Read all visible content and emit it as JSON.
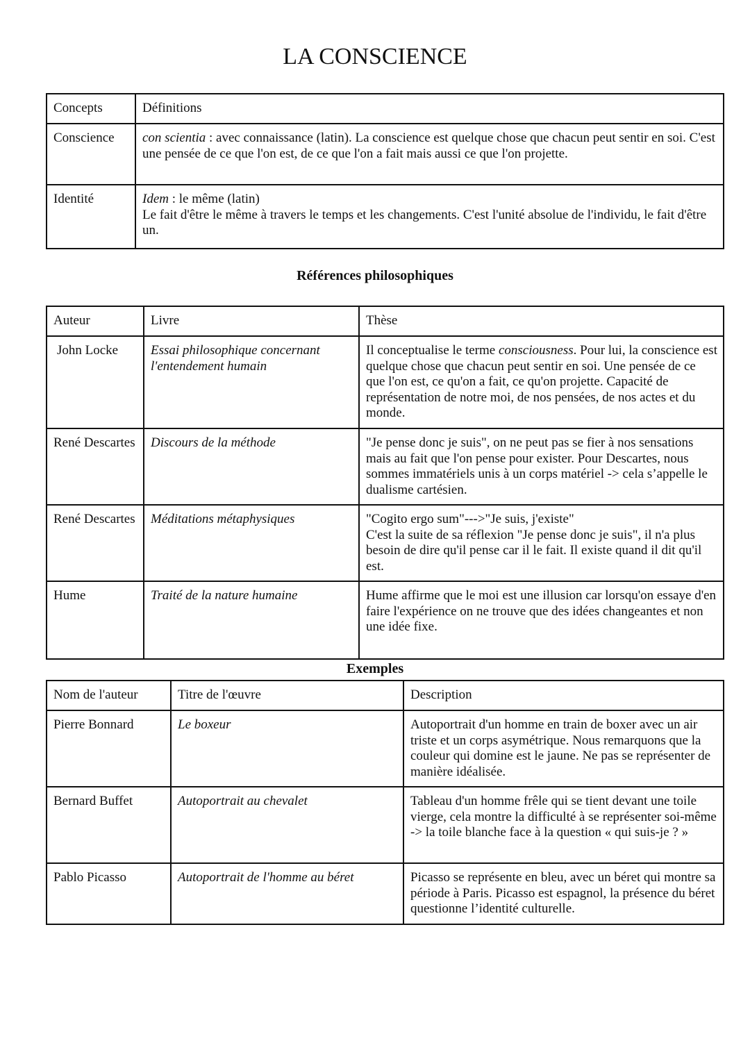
{
  "title": "LA CONSCIENCE",
  "concepts": {
    "headers": [
      "Concepts",
      "Définitions"
    ],
    "rows": [
      {
        "concept": "Conscience",
        "italic": "con scientia",
        "text": " : avec connaissance (latin). La conscience est quelque chose que chacun peut sentir en soi. C'est une pensée de ce que l'on est, de ce que l'on a fait mais aussi ce que l'on projette."
      },
      {
        "concept": "Identité",
        "italic": "Idem",
        "text": " : le même (latin)",
        "text2": "Le fait d'être le même à travers le temps et les changements. C'est l'unité absolue de l'individu, le fait d'être un."
      }
    ]
  },
  "references": {
    "heading": "Références philosophiques",
    "headers": [
      "Auteur",
      "Livre",
      "Thèse"
    ],
    "rows": [
      {
        "author": "John Locke",
        "book": "Essai philosophique concernant l'entendement humain",
        "thesis_a": "Il conceptualise le terme ",
        "thesis_it": "consciousness",
        "thesis_b": ". Pour lui, la conscience est quelque chose que chacun peut sentir en soi. Une pensée de ce que l'on est, ce qu'on a fait, ce qu'on projette. Capacité de représentation de notre moi, de nos pensées, de nos actes et du monde."
      },
      {
        "author": "René Descartes",
        "book": "Discours de la méthode",
        "thesis_a": "\"Je pense donc je suis\", on ne peut pas se fier à nos sensations mais au fait que l'on pense pour exister. Pour Descartes, nous sommes immatériels unis à un corps matériel -> cela s’appelle le dualisme cartésien."
      },
      {
        "author": "René Descartes",
        "book": "Méditations métaphysiques",
        "thesis_a": "\"Cogito ergo sum\"--->\"Je suis, j'existe\"",
        "thesis_c": "C'est la suite de sa réflexion \"Je pense donc je suis\", il n'a plus besoin de dire qu'il pense car il le fait. Il existe quand il dit qu'il est."
      },
      {
        "author": "Hume",
        "book": "Traité de la nature humaine",
        "thesis_a": "Hume affirme que le moi est une illusion car lorsqu'on essaye d'en faire l'expérience on ne trouve que des idées changeantes et non une idée fixe."
      }
    ]
  },
  "examples": {
    "heading": "Exemples",
    "headers": [
      "Nom de l'auteur",
      "Titre de l'œuvre",
      "Description"
    ],
    "rows": [
      {
        "author": "Pierre Bonnard",
        "work": "Le boxeur",
        "desc": "Autoportrait d'un homme en train de boxer avec un air triste et un corps asymétrique. Nous remarquons que la couleur qui domine est le jaune. Ne pas se représenter de manière idéalisée."
      },
      {
        "author": "Bernard Buffet",
        "work": "Autoportrait au chevalet",
        "desc": "Tableau d'un homme frêle qui se tient devant une toile vierge, cela montre la difficulté à se représenter soi-même -> la toile blanche face à la question « qui suis-je ? »"
      },
      {
        "author": "Pablo Picasso",
        "work": "Autoportrait de l'homme au béret",
        "desc": "Picasso se représente en bleu, avec un béret qui montre sa période à Paris. Picasso est espagnol, la présence du béret questionne l’identité culturelle."
      }
    ]
  }
}
